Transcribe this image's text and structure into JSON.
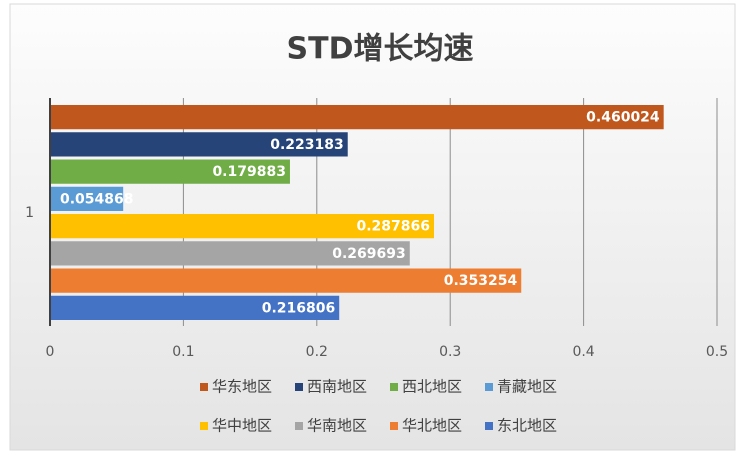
{
  "chart_data": {
    "type": "bar",
    "orientation": "horizontal",
    "title": "STD增长均速",
    "categories": [
      "1"
    ],
    "series": [
      {
        "name": "华东地区",
        "color": "#c0571c",
        "values": [
          0.460024
        ]
      },
      {
        "name": "西南地区",
        "color": "#264478",
        "values": [
          0.223183
        ]
      },
      {
        "name": "西北地区",
        "color": "#70ad47",
        "values": [
          0.179883
        ]
      },
      {
        "name": "青藏地区",
        "color": "#5b9bd5",
        "values": [
          0.054868
        ]
      },
      {
        "name": "华中地区",
        "color": "#ffc000",
        "values": [
          0.287866
        ]
      },
      {
        "name": "华南地区",
        "color": "#a5a5a5",
        "values": [
          0.269693
        ]
      },
      {
        "name": "华北地区",
        "color": "#ed7d31",
        "values": [
          0.353254
        ]
      },
      {
        "name": "东北地区",
        "color": "#4472c4",
        "values": [
          0.216806
        ]
      }
    ],
    "xlim": [
      0,
      0.5
    ],
    "xticks": [
      0,
      0.1,
      0.2,
      0.3,
      0.4,
      0.5
    ],
    "grid": true,
    "legend": "bottom"
  }
}
